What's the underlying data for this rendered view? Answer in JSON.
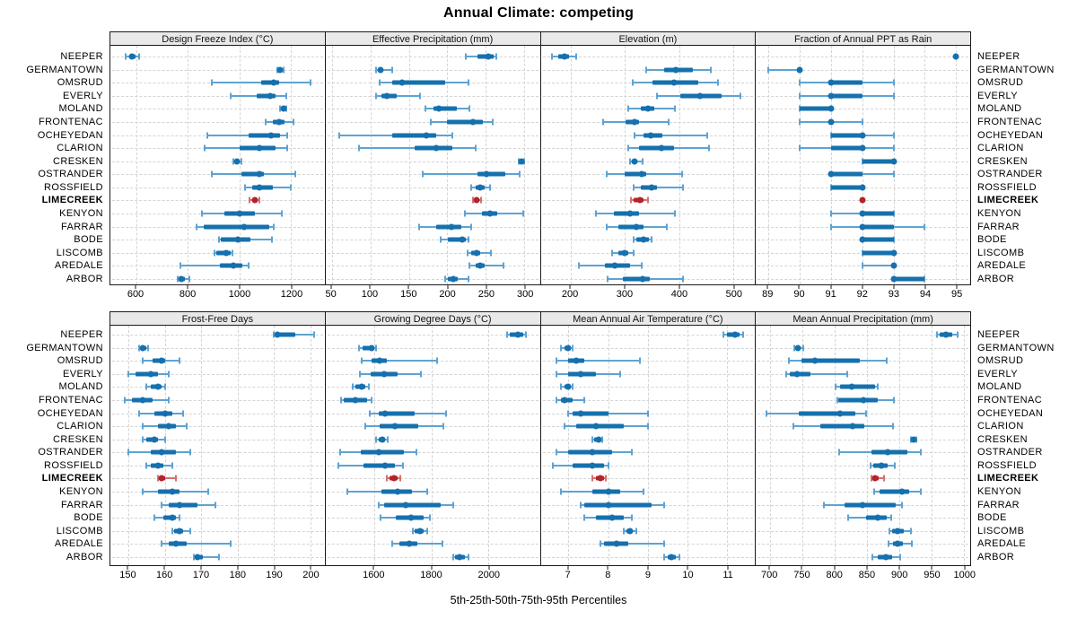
{
  "title": "Annual Climate: competing",
  "footer": "5th-25th-50th-75th-95th Percentiles",
  "highlight_location": "LIMECREEK",
  "colors": {
    "marker": "#1670ad",
    "whisker": "#5ea3d2",
    "highlight": "#b2232a",
    "highlight_whisker": "#d4716f",
    "panel_header_bg": "#e9e9e9",
    "grid": "#d4d4d4",
    "border": "#1a1a1a"
  },
  "chart_data": {
    "type": "dot-interval-trellis",
    "percentiles": [
      5,
      25,
      50,
      75,
      95
    ],
    "caption": "5th-25th-50th-75th-95th Percentiles",
    "legend_position": "none",
    "grid": "dashed",
    "categories": [
      "NEEPER",
      "GERMANTOWN",
      "OMSRUD",
      "EVERLY",
      "MOLAND",
      "FRONTENAC",
      "OCHEYEDAN",
      "CLARION",
      "CRESKEN",
      "OSTRANDER",
      "ROSSFIELD",
      "LIMECREEK",
      "KENYON",
      "FARRAR",
      "BODE",
      "LISCOMB",
      "AREDALE",
      "ARBOR"
    ],
    "panels": [
      {
        "title": "Design Freeze Index (°C)",
        "xlim": [
          500,
          1330
        ],
        "ticks": [
          600,
          800,
          1000,
          1200
        ],
        "series": [
          [
            560,
            572,
            585,
            598,
            612
          ],
          [
            1145,
            1152,
            1158,
            1166,
            1172
          ],
          [
            893,
            1085,
            1133,
            1155,
            1275
          ],
          [
            966,
            1068,
            1119,
            1141,
            1181
          ],
          [
            1158,
            1165,
            1171,
            1177,
            1183
          ],
          [
            1102,
            1130,
            1152,
            1175,
            1209
          ],
          [
            876,
            1034,
            1124,
            1158,
            1186
          ],
          [
            864,
            1000,
            1076,
            1140,
            1186
          ],
          [
            978,
            985,
            991,
            998,
            1006
          ],
          [
            893,
            1006,
            1077,
            1095,
            1215
          ],
          [
            1023,
            1051,
            1076,
            1130,
            1198
          ],
          [
            1040,
            1050,
            1059,
            1068,
            1076
          ],
          [
            854,
            942,
            999,
            1058,
            1163
          ],
          [
            832,
            863,
            1018,
            1114,
            1132
          ],
          [
            920,
            928,
            992,
            1044,
            1125
          ],
          [
            905,
            911,
            948,
            965,
            973
          ],
          [
            770,
            924,
            978,
            1010,
            1035
          ],
          [
            762,
            768,
            775,
            790,
            807
          ]
        ]
      },
      {
        "title": "Effective Precipitation (mm)",
        "xlim": [
          42,
          320
        ],
        "ticks": [
          50,
          100,
          150,
          200,
          250,
          300
        ],
        "series": [
          [
            224,
            239,
            253,
            260,
            264
          ],
          [
            108,
            110,
            113,
            117,
            129
          ],
          [
            112,
            129,
            141,
            197,
            227
          ],
          [
            108,
            115,
            122,
            134,
            165
          ],
          [
            172,
            182,
            189,
            212,
            229
          ],
          [
            178,
            199,
            233,
            246,
            259
          ],
          [
            60,
            129,
            173,
            186,
            207
          ],
          [
            85,
            157,
            185,
            207,
            237
          ],
          [
            293,
            295,
            296,
            298,
            300
          ],
          [
            168,
            239,
            251,
            275,
            294
          ],
          [
            231,
            237,
            243,
            248,
            255
          ],
          [
            233,
            236,
            238,
            240,
            244
          ],
          [
            223,
            245,
            255,
            265,
            298
          ],
          [
            163,
            186,
            205,
            218,
            231
          ],
          [
            191,
            201,
            219,
            224,
            227
          ],
          [
            226,
            231,
            238,
            243,
            256
          ],
          [
            229,
            237,
            243,
            248,
            273
          ],
          [
            197,
            201,
            208,
            214,
            227
          ]
        ]
      },
      {
        "title": "Elevation (m)",
        "xlim": [
          145,
          540
        ],
        "ticks": [
          200,
          300,
          400,
          500
        ],
        "series": [
          [
            166,
            178,
            189,
            197,
            211
          ],
          [
            340,
            373,
            394,
            425,
            458
          ],
          [
            314,
            351,
            390,
            436,
            472
          ],
          [
            360,
            403,
            439,
            479,
            513
          ],
          [
            306,
            329,
            343,
            354,
            392
          ],
          [
            260,
            302,
            318,
            326,
            380
          ],
          [
            318,
            335,
            347,
            369,
            452
          ],
          [
            306,
            326,
            367,
            390,
            455
          ],
          [
            310,
            314,
            318,
            323,
            332
          ],
          [
            266,
            299,
            331,
            340,
            405
          ],
          [
            317,
            330,
            350,
            360,
            408
          ],
          [
            312,
            316,
            328,
            334,
            342
          ],
          [
            247,
            280,
            309,
            326,
            392
          ],
          [
            267,
            288,
            321,
            335,
            377
          ],
          [
            317,
            321,
            335,
            344,
            350
          ],
          [
            277,
            288,
            299,
            307,
            316
          ],
          [
            216,
            263,
            281,
            310,
            331
          ],
          [
            269,
            296,
            332,
            346,
            408
          ]
        ]
      },
      {
        "title": "Fraction of Annual PPT as Rain",
        "xlim": [
          88.6,
          95.45
        ],
        "ticks": [
          89,
          90,
          91,
          92,
          93,
          94,
          95
        ],
        "series": [
          [
            95,
            95,
            95,
            95,
            95
          ],
          [
            89,
            90,
            90,
            90,
            90
          ],
          [
            90,
            91,
            91,
            92,
            93
          ],
          [
            90,
            91,
            91,
            92,
            93
          ],
          [
            90,
            90,
            91,
            91,
            91
          ],
          [
            90,
            91,
            91,
            91,
            92
          ],
          [
            91,
            91,
            92,
            92,
            93
          ],
          [
            90,
            91,
            92,
            92,
            93
          ],
          [
            92,
            92,
            93,
            93,
            93
          ],
          [
            91,
            91,
            91,
            92,
            93
          ],
          [
            91,
            91,
            92,
            92,
            92
          ],
          [
            92,
            92,
            92,
            92,
            92
          ],
          [
            91,
            92,
            92,
            93,
            93
          ],
          [
            91,
            92,
            92,
            93,
            94
          ],
          [
            92,
            92,
            92,
            93,
            93
          ],
          [
            92,
            92,
            93,
            93,
            93
          ],
          [
            92,
            93,
            93,
            93,
            93
          ],
          [
            93,
            93,
            93,
            94,
            94
          ]
        ]
      },
      {
        "title": "Frost-Free Days",
        "xlim": [
          145,
          204
        ],
        "ticks": [
          150,
          160,
          170,
          180,
          190,
          200
        ],
        "series": [
          [
            190,
            190.5,
            191,
            196,
            201
          ],
          [
            153,
            153.5,
            154,
            155,
            155.5
          ],
          [
            154,
            156.5,
            159,
            160,
            164
          ],
          [
            150,
            152,
            156,
            158,
            161
          ],
          [
            155,
            156,
            158,
            159,
            160
          ],
          [
            149,
            151,
            154,
            156.5,
            161
          ],
          [
            153,
            157,
            160,
            162,
            165
          ],
          [
            154,
            158,
            161,
            163,
            166
          ],
          [
            154,
            155,
            157,
            158,
            160
          ],
          [
            150,
            156,
            159,
            163,
            167
          ],
          [
            155,
            156,
            158,
            159.5,
            162
          ],
          [
            158,
            158.5,
            159,
            160,
            163
          ],
          [
            154,
            158,
            162,
            164,
            172
          ],
          [
            159,
            161,
            164,
            169,
            174
          ],
          [
            157,
            159.5,
            162,
            163,
            164
          ],
          [
            162,
            162.5,
            164,
            165,
            167
          ],
          [
            159,
            161,
            163,
            166,
            178
          ],
          [
            168,
            168.5,
            169,
            170.5,
            175
          ]
        ]
      },
      {
        "title": "Growing Degree Days (°C)",
        "xlim": [
          1430,
          2180
        ],
        "ticks": [
          1600,
          1800,
          2000
        ],
        "series": [
          [
            2066,
            2075,
            2103,
            2122,
            2131
          ],
          [
            1546,
            1559,
            1590,
            1600,
            1608
          ],
          [
            1557,
            1590,
            1619,
            1646,
            1819
          ],
          [
            1551,
            1588,
            1636,
            1682,
            1763
          ],
          [
            1526,
            1533,
            1557,
            1569,
            1581
          ],
          [
            1485,
            1495,
            1536,
            1574,
            1592
          ],
          [
            1585,
            1615,
            1639,
            1742,
            1852
          ],
          [
            1569,
            1619,
            1672,
            1754,
            1842
          ],
          [
            1608,
            1615,
            1629,
            1638,
            1646
          ],
          [
            1482,
            1554,
            1615,
            1703,
            1747
          ],
          [
            1474,
            1564,
            1639,
            1672,
            1701
          ],
          [
            1643,
            1653,
            1670,
            1681,
            1691
          ],
          [
            1505,
            1626,
            1682,
            1732,
            1785
          ],
          [
            1615,
            1636,
            1711,
            1832,
            1878
          ],
          [
            1623,
            1677,
            1729,
            1773,
            1794
          ],
          [
            1736,
            1742,
            1760,
            1773,
            1785
          ],
          [
            1664,
            1688,
            1722,
            1752,
            1839
          ],
          [
            1876,
            1883,
            1899,
            1917,
            1930
          ]
        ]
      },
      {
        "title": "Mean Annual Air Temperature (°C)",
        "xlim": [
          6.3,
          11.7
        ],
        "ticks": [
          7,
          8,
          9,
          10,
          11
        ],
        "series": [
          [
            10.9,
            11.0,
            11.2,
            11.3,
            11.4
          ],
          [
            6.8,
            6.9,
            7.0,
            7.05,
            7.1
          ],
          [
            6.7,
            7.0,
            7.2,
            7.4,
            8.8
          ],
          [
            6.7,
            7.0,
            7.3,
            7.7,
            8.3
          ],
          [
            6.8,
            6.9,
            7.0,
            7.05,
            7.1
          ],
          [
            6.7,
            6.8,
            6.9,
            7.1,
            7.4
          ],
          [
            7.0,
            7.1,
            7.3,
            8.0,
            9.0
          ],
          [
            6.9,
            7.2,
            7.7,
            8.4,
            9.0
          ],
          [
            7.6,
            7.65,
            7.75,
            7.8,
            7.85
          ],
          [
            6.7,
            7.0,
            7.6,
            8.1,
            8.6
          ],
          [
            6.6,
            7.1,
            7.6,
            7.9,
            8.0
          ],
          [
            7.6,
            7.7,
            7.8,
            7.9,
            7.95
          ],
          [
            6.8,
            7.6,
            8.0,
            8.3,
            8.9
          ],
          [
            7.3,
            7.4,
            8.0,
            9.1,
            9.4
          ],
          [
            7.4,
            7.7,
            8.1,
            8.4,
            8.6
          ],
          [
            8.4,
            8.45,
            8.55,
            8.6,
            8.7
          ],
          [
            7.8,
            7.9,
            8.2,
            8.5,
            9.4
          ],
          [
            9.4,
            9.5,
            9.6,
            9.7,
            9.8
          ]
        ]
      },
      {
        "title": "Mean Annual Precipitation (mm)",
        "xlim": [
          678,
          1010
        ],
        "ticks": [
          700,
          750,
          800,
          850,
          900,
          950,
          1000
        ],
        "series": [
          [
            958,
            963,
            973,
            982,
            990
          ],
          [
            738,
            740,
            743,
            747,
            751
          ],
          [
            729,
            748,
            769,
            839,
            881
          ],
          [
            725,
            731,
            742,
            762,
            819
          ],
          [
            801,
            808,
            826,
            862,
            867
          ],
          [
            804,
            806,
            845,
            867,
            892
          ],
          [
            694,
            745,
            808,
            832,
            849
          ],
          [
            736,
            778,
            828,
            846,
            890
          ],
          [
            918,
            920,
            922,
            924,
            926
          ],
          [
            807,
            857,
            882,
            913,
            934
          ],
          [
            855,
            860,
            873,
            882,
            893
          ],
          [
            857,
            859,
            862,
            868,
            877
          ],
          [
            861,
            869,
            905,
            916,
            934
          ],
          [
            784,
            815,
            843,
            895,
            905
          ],
          [
            821,
            848,
            867,
            881,
            888
          ],
          [
            885,
            889,
            898,
            907,
            918
          ],
          [
            884,
            890,
            898,
            906,
            920
          ],
          [
            859,
            867,
            879,
            889,
            901
          ]
        ]
      }
    ]
  }
}
